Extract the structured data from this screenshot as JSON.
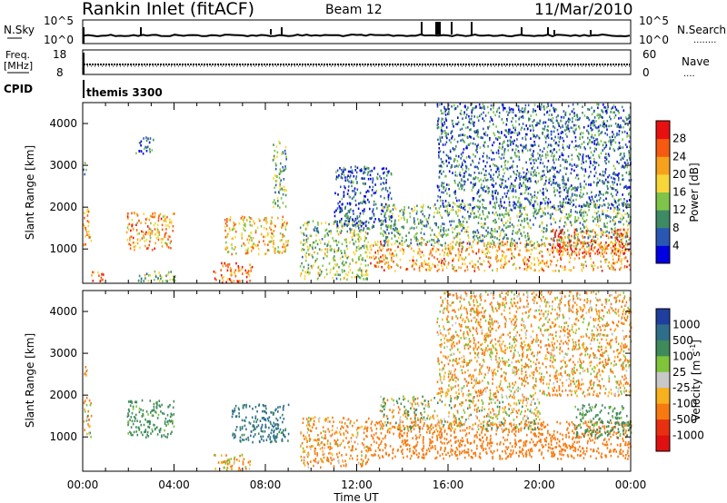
{
  "header": {
    "station": "Rankin Inlet (fitACF)",
    "beam": "Beam 12",
    "date": "11/Mar/2010"
  },
  "chart_data": [
    {
      "type": "line",
      "panel": "noise",
      "left_label": "N.Sky",
      "right_label": "N.Search",
      "left_ticks": [
        "10^5",
        "10^0"
      ],
      "right_ticks": [
        "10^5",
        "10^0"
      ],
      "note": "log scale"
    },
    {
      "type": "line",
      "panel": "frequency",
      "left_label_lines": [
        "Freq.",
        "[MHz]"
      ],
      "right_label": "Nave",
      "left_ticks": [
        18,
        8
      ],
      "right_ticks": [
        60,
        0
      ],
      "approx_frequency_mhz": 11
    },
    {
      "type": "table",
      "panel": "cpid",
      "label": "CPID",
      "value": "themis 3300"
    },
    {
      "type": "heatmap",
      "panel": "power",
      "ylabel": "Slant Range [km]",
      "yticks": [
        1000,
        2000,
        3000,
        4000
      ],
      "ylim": [
        180,
        4500
      ],
      "colorbar_label": "Power [dB]",
      "colorbar_ticks": [
        "4",
        "8",
        "12",
        "16",
        "20",
        "24",
        "28"
      ],
      "colorbar_colors": [
        "#0000e0",
        "#2a56b4",
        "#3d8a64",
        "#7fc34a",
        "#f7d63a",
        "#f7a21e",
        "#f55a10",
        "#e81010"
      ],
      "blobs": [
        {
          "t": [
            0.0,
            0.35
          ],
          "r": [
            1000,
            2000
          ],
          "v": 22
        },
        {
          "t": [
            0.0,
            0.2
          ],
          "r": [
            2800,
            3100
          ],
          "v": 8
        },
        {
          "t": [
            0.35,
            0.9
          ],
          "r": [
            200,
            500
          ],
          "v": 24
        },
        {
          "t": [
            1.9,
            4.0
          ],
          "r": [
            1000,
            1900
          ],
          "v": 22
        },
        {
          "t": [
            2.4,
            4.2
          ],
          "r": [
            250,
            500
          ],
          "v": 14
        },
        {
          "t": [
            2.3,
            3.1
          ],
          "r": [
            3300,
            3700
          ],
          "v": 8
        },
        {
          "t": [
            5.7,
            7.4
          ],
          "r": [
            220,
            700
          ],
          "v": 24
        },
        {
          "t": [
            6.2,
            9.0
          ],
          "r": [
            900,
            1800
          ],
          "v": 20
        },
        {
          "t": [
            8.3,
            8.9
          ],
          "r": [
            2000,
            3600
          ],
          "v": 12
        },
        {
          "t": [
            9.5,
            12.5
          ],
          "r": [
            300,
            1700
          ],
          "v": 14
        },
        {
          "t": [
            11.0,
            13.5
          ],
          "r": [
            1500,
            3000
          ],
          "v": 6
        },
        {
          "t": [
            12.5,
            24.0
          ],
          "r": [
            500,
            1200
          ],
          "v": 22
        },
        {
          "t": [
            13.0,
            24.0
          ],
          "r": [
            1100,
            2100
          ],
          "v": 12
        },
        {
          "t": [
            15.5,
            24.0
          ],
          "r": [
            2000,
            4500
          ],
          "v": 8
        },
        {
          "t": [
            20.5,
            24.0
          ],
          "r": [
            900,
            1500
          ],
          "v": 26
        }
      ]
    },
    {
      "type": "heatmap",
      "panel": "velocity",
      "ylabel": "Slant Range [km]",
      "yticks": [
        1000,
        2000,
        3000,
        4000
      ],
      "ylim": [
        180,
        4500
      ],
      "colorbar_label": "Velocity [m s",
      "colorbar_label_sup": "-1",
      "colorbar_label_end": "]",
      "colorbar_ticks": [
        "1000",
        "500",
        "100",
        "25",
        "-25",
        "-100",
        "-500",
        "-1000"
      ],
      "colorbar_colors": [
        "#1f3f9f",
        "#2f6e8a",
        "#3e8a5a",
        "#7fc43a",
        "#c8c8c8",
        "#f7b01e",
        "#f77a10",
        "#e83010",
        "#e01010"
      ],
      "xlabel": "Time UT",
      "xticks": [
        "00:00",
        "04:00",
        "08:00",
        "12:00",
        "16:00",
        "20:00",
        "00:00"
      ],
      "blobs": [
        {
          "t": [
            0.0,
            0.35
          ],
          "r": [
            1000,
            2000
          ],
          "v": -60
        },
        {
          "t": [
            0.0,
            0.2
          ],
          "r": [
            2400,
            2800
          ],
          "v": -100
        },
        {
          "t": [
            1.9,
            4.0
          ],
          "r": [
            1000,
            1900
          ],
          "v": 250
        },
        {
          "t": [
            5.7,
            7.4
          ],
          "r": [
            220,
            600
          ],
          "v": -80
        },
        {
          "t": [
            6.5,
            9.0
          ],
          "r": [
            900,
            1800
          ],
          "v": 600
        },
        {
          "t": [
            9.5,
            12.5
          ],
          "r": [
            300,
            1500
          ],
          "v": -150
        },
        {
          "t": [
            12.5,
            24.0
          ],
          "r": [
            500,
            1400
          ],
          "v": -300
        },
        {
          "t": [
            13.0,
            20.0
          ],
          "r": [
            1200,
            2000
          ],
          "v": 0
        },
        {
          "t": [
            21.5,
            24.0
          ],
          "r": [
            1000,
            1800
          ],
          "v": 200
        },
        {
          "t": [
            15.5,
            24.0
          ],
          "r": [
            2000,
            4500
          ],
          "v": -100
        }
      ]
    }
  ]
}
